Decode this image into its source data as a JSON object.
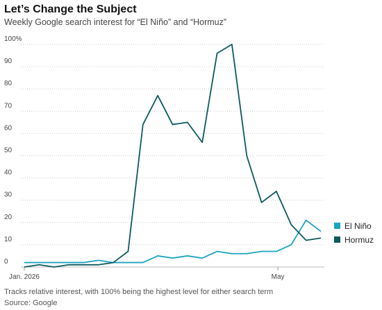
{
  "chart_data": {
    "type": "line",
    "title": "Let’s Change the Subject",
    "subtitle": "Weekly Google search interest for “El Niño” and “Hormuz”",
    "note": "Tracks relative interest, with 100% being the highest level for either search term",
    "source": "Source: Google",
    "categories": [
      null,
      null,
      null,
      null,
      null,
      null,
      null,
      null,
      null,
      null,
      null,
      null,
      null,
      null,
      null,
      null,
      null,
      null,
      null,
      null,
      null
    ],
    "xticks": [
      {
        "value": 0,
        "label": "Jan. 2026"
      },
      {
        "value": 17.1,
        "label": "May"
      }
    ],
    "xlim": [
      -0.2,
      20.2
    ],
    "series": [
      {
        "name": "El Niño",
        "color": "#1ba3c0",
        "values": [
          2,
          2,
          2,
          2,
          2,
          3,
          2,
          2,
          2,
          5,
          4,
          5,
          4,
          7,
          6,
          6,
          7,
          7,
          10,
          21,
          16
        ]
      },
      {
        "name": "Hormuz",
        "color": "#0b5a5e",
        "values": [
          0,
          1,
          0,
          1,
          1,
          1,
          2,
          7,
          64,
          77,
          64,
          65,
          56,
          96,
          100,
          50,
          29,
          34,
          19,
          12,
          13
        ]
      }
    ],
    "ylim": [
      0,
      100
    ],
    "yticks": [
      0,
      10,
      20,
      30,
      40,
      50,
      60,
      70,
      80,
      90,
      {
        "value": 100,
        "label": "100%"
      }
    ],
    "grid": true
  }
}
